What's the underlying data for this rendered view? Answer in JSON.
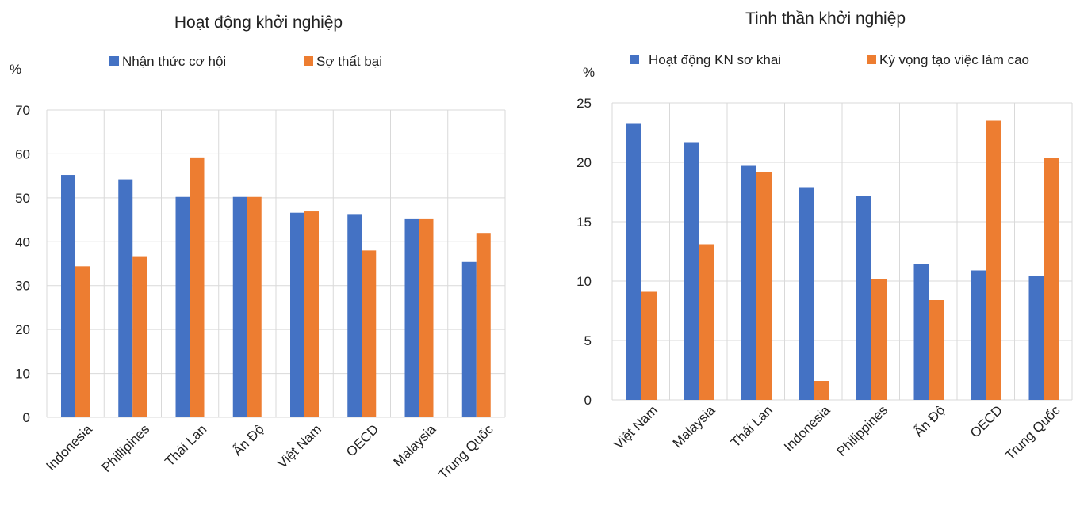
{
  "colors": {
    "series1": "#4472C4",
    "series2": "#ED7D31",
    "grid": "#D9D9D9",
    "text": "#222222"
  },
  "chart_data": [
    {
      "type": "bar",
      "title": "Hoạt động khởi nghiệp",
      "unit_label": "%",
      "categories": [
        "Indonesia",
        "Phillipines",
        "Thái Lan",
        "Ấn Độ",
        "Việt Nam",
        "OECD",
        "Malaysia",
        "Trung Quốc"
      ],
      "series": [
        {
          "name": "Nhận thức cơ hội",
          "values": [
            55.2,
            54.2,
            50.2,
            50.2,
            46.6,
            46.3,
            45.3,
            35.4
          ]
        },
        {
          "name": "Sợ thất bại",
          "values": [
            34.4,
            36.7,
            59.2,
            50.2,
            46.9,
            38.0,
            45.3,
            42.0
          ]
        }
      ],
      "ylim": [
        0,
        70
      ],
      "yticks": [
        0,
        10,
        20,
        30,
        40,
        50,
        60,
        70
      ],
      "grid": true,
      "legend_position": "top"
    },
    {
      "type": "bar",
      "title": "Tinh thần khởi nghiệp",
      "unit_label": "%",
      "categories": [
        "Việt Nam",
        "Malaysia",
        "Thái Lan",
        "Indonesia",
        "Philippines",
        "Ấn Độ",
        "OECD",
        "Trung Quốc"
      ],
      "series": [
        {
          "name": "Hoạt động KN sơ khai",
          "values": [
            23.3,
            21.7,
            19.7,
            17.9,
            17.2,
            11.4,
            10.9,
            10.4
          ]
        },
        {
          "name": "Kỳ vọng tạo việc làm cao",
          "values": [
            9.1,
            13.1,
            19.2,
            1.6,
            10.2,
            8.4,
            23.5,
            20.4
          ]
        }
      ],
      "ylim": [
        0,
        25
      ],
      "yticks": [
        0,
        5,
        10,
        15,
        20,
        25
      ],
      "grid": true,
      "legend_position": "top"
    }
  ]
}
